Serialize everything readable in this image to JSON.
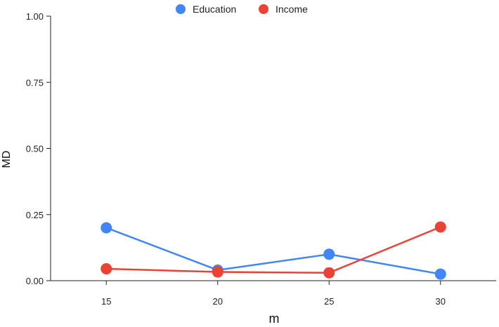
{
  "chart_data": {
    "type": "line",
    "title": "",
    "xlabel": "m",
    "ylabel": "MD",
    "x": [
      15,
      20,
      25,
      30
    ],
    "x_tick_labels": [
      "15",
      "20",
      "25",
      "30"
    ],
    "y_ticks": [
      0,
      0.25,
      0.5,
      0.75,
      1.0
    ],
    "y_tick_labels": [
      "0.00",
      "0.25",
      "0.50",
      "0.75",
      "1.00"
    ],
    "ylim": [
      0,
      1.0
    ],
    "xlim": [
      12.5,
      32.5
    ],
    "grid": false,
    "legend_position": "top-center",
    "series": [
      {
        "name": "Education",
        "color": "#4285F4",
        "values": [
          0.2,
          0.04,
          0.1,
          0.025
        ]
      },
      {
        "name": "Income",
        "color": "#EA4335",
        "values": [
          0.045,
          0.033,
          0.03,
          0.203
        ]
      }
    ]
  }
}
